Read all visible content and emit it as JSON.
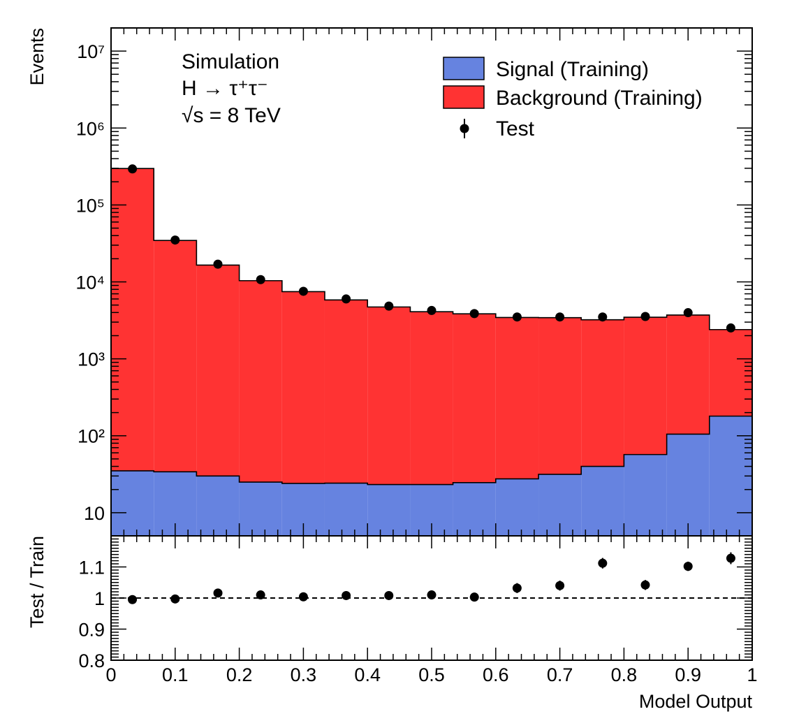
{
  "chart_data": [
    {
      "type": "bar",
      "panel": "main",
      "ylabel": "Events",
      "yscale": "log",
      "ylim": [
        5,
        20000000
      ],
      "xlim": [
        0,
        1
      ],
      "bin_edges": [
        0,
        0.0667,
        0.1333,
        0.2,
        0.2667,
        0.3333,
        0.4,
        0.4667,
        0.5333,
        0.6,
        0.6667,
        0.7333,
        0.8,
        0.8667,
        0.9333,
        1.0
      ],
      "stacked": true,
      "series": [
        {
          "name": "Signal (Training)",
          "style": "filled-histogram",
          "color": "#6683e0",
          "values": [
            35,
            34,
            30,
            25,
            24,
            24.2,
            23.2,
            23.2,
            24.6,
            27.5,
            31.5,
            40,
            57,
            105,
            180
          ]
        },
        {
          "name": "Background (Training)",
          "style": "filled-histogram",
          "color": "#ff3333",
          "values": [
            298000,
            34500,
            16500,
            10350,
            7450,
            5800,
            4700,
            4070,
            3820,
            3420,
            3400,
            3180,
            3420,
            3600,
            2220
          ]
        },
        {
          "name": "Test",
          "style": "markers",
          "color": "#000000",
          "values": [
            294000,
            35000,
            17000,
            10700,
            7550,
            6000,
            4850,
            4250,
            3870,
            3500,
            3500,
            3500,
            3550,
            3980,
            2520
          ]
        }
      ],
      "y_tick_labels": {
        "10": "10",
        "100": "10²",
        "1000": "10³",
        "10000": "10⁴",
        "100000": "10⁵",
        "1000000": "10⁶",
        "10000000": "10⁷"
      },
      "legend": {
        "placement": "top-right",
        "entries": [
          "Signal (Training)",
          "Background (Training)",
          "Test"
        ]
      },
      "annotations": [
        "Simulation",
        "H → τ⁺τ⁻",
        "√s = 8 TeV"
      ]
    },
    {
      "type": "scatter",
      "panel": "ratio",
      "xlabel": "Model Output",
      "ylabel": "Test / Train",
      "xlim": [
        0,
        1
      ],
      "ylim": [
        0.8,
        1.2
      ],
      "reference_line": 1.0,
      "x": [
        0.0333,
        0.1,
        0.1667,
        0.2333,
        0.3,
        0.3667,
        0.4333,
        0.5,
        0.5667,
        0.6333,
        0.7,
        0.7667,
        0.8333,
        0.9,
        0.9667
      ],
      "y": [
        0.995,
        0.997,
        1.016,
        1.01,
        1.004,
        1.008,
        1.008,
        1.01,
        1.003,
        1.032,
        1.04,
        1.112,
        1.042,
        1.102,
        1.128
      ],
      "yerr": [
        0.004,
        0.006,
        0.009,
        0.01,
        0.01,
        0.012,
        0.013,
        0.014,
        0.014,
        0.016,
        0.016,
        0.017,
        0.016,
        0.015,
        0.019
      ],
      "x_tick_labels": [
        "0",
        "0.1",
        "0.2",
        "0.3",
        "0.4",
        "0.5",
        "0.6",
        "0.7",
        "0.8",
        "0.9",
        "1"
      ],
      "y_tick_labels": [
        "0.8",
        "0.9",
        "1",
        "1.1"
      ]
    }
  ]
}
